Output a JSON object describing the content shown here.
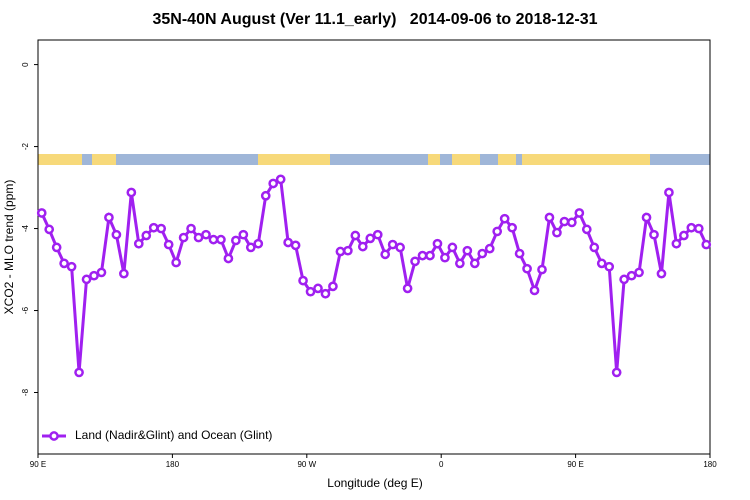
{
  "chart_data": {
    "type": "line",
    "title": "35N-40N August (Ver 11.1_early)   2014-09-06 to 2018-12-31",
    "xlabel": "Longitude (deg E)",
    "ylabel": "XCO2 - MLO trend (ppm)",
    "xlim": [
      90,
      540
    ],
    "xticks": [
      {
        "value": 90,
        "label": "90 E"
      },
      180,
      {
        "value": 270,
        "label": "90 W"
      },
      {
        "value": 360,
        "label": "0"
      },
      {
        "value": 450,
        "label": "90 E"
      },
      {
        "value": 540,
        "label": "180"
      }
    ],
    "ylim": [
      -9.5,
      0.6
    ],
    "yticks": [
      0,
      -2,
      -4,
      -6,
      -8
    ],
    "legend": "bottomleft",
    "x": [
      92.5,
      97.5,
      102.5,
      107.5,
      112.5,
      117.5,
      122.5,
      127.5,
      132.5,
      137.5,
      142.5,
      147.5,
      152.5,
      157.5,
      162.5,
      167.5,
      172.5,
      177.5,
      182.5,
      187.5,
      192.5,
      197.5,
      202.5,
      207.5,
      212.5,
      217.5,
      222.5,
      227.5,
      232.5,
      237.5,
      242.5,
      247.5,
      252.5,
      257.5,
      262.5,
      267.5,
      272.5,
      277.5,
      282.5,
      287.5,
      292.5,
      297.5,
      302.5,
      307.5,
      312.5,
      317.5,
      322.5,
      327.5,
      332.5,
      337.5,
      342.5,
      347.5,
      352.5,
      357.5,
      362.5,
      367.5,
      372.5,
      377.5,
      382.5,
      387.5,
      392.5,
      397.5,
      402.5,
      407.5,
      412.5,
      417.5,
      422.5,
      427.5,
      432.5,
      437.5,
      442.5,
      447.5,
      452.5,
      457.5,
      462.5,
      467.5,
      472.5,
      477.5,
      482.5,
      487.5,
      492.5,
      497.5,
      502.5,
      507.5,
      512.5,
      517.5,
      522.5,
      527.5,
      532.5,
      537.5
    ],
    "series": [
      {
        "name": "Land (Nadir&Glint) and Ocean (Glint)",
        "color": "#a020f0",
        "values": [
          -3.62,
          -4.02,
          -4.46,
          -4.85,
          -4.93,
          -7.51,
          -5.24,
          -5.15,
          -5.07,
          -3.73,
          -4.15,
          -5.1,
          -3.12,
          -4.37,
          -4.17,
          -3.98,
          -4.0,
          -4.39,
          -4.83,
          -4.22,
          -4.0,
          -4.22,
          -4.15,
          -4.27,
          -4.27,
          -4.73,
          -4.29,
          -4.15,
          -4.46,
          -4.37,
          -3.2,
          -2.9,
          -2.8,
          -4.34,
          -4.41,
          -5.27,
          -5.54,
          -5.46,
          -5.59,
          -5.41,
          -4.56,
          -4.54,
          -4.17,
          -4.44,
          -4.24,
          -4.15,
          -4.63,
          -4.39,
          -4.46,
          -5.46,
          -4.8,
          -4.66,
          -4.66,
          -4.37,
          -4.71,
          -4.46,
          -4.85,
          -4.54,
          -4.85,
          -4.61,
          -4.49,
          -4.07,
          -3.76,
          -3.98,
          -4.61,
          -4.98,
          -5.51,
          -5.0,
          -3.73,
          -4.1,
          -3.83,
          -3.85,
          -3.62,
          -4.02,
          -4.46,
          -4.85,
          -4.93,
          -7.51,
          -5.24,
          -5.15,
          -5.07,
          -3.73,
          -4.15,
          -5.1,
          -3.12,
          -4.37,
          -4.17,
          -3.98,
          -4.0,
          -4.39
        ]
      }
    ]
  }
}
